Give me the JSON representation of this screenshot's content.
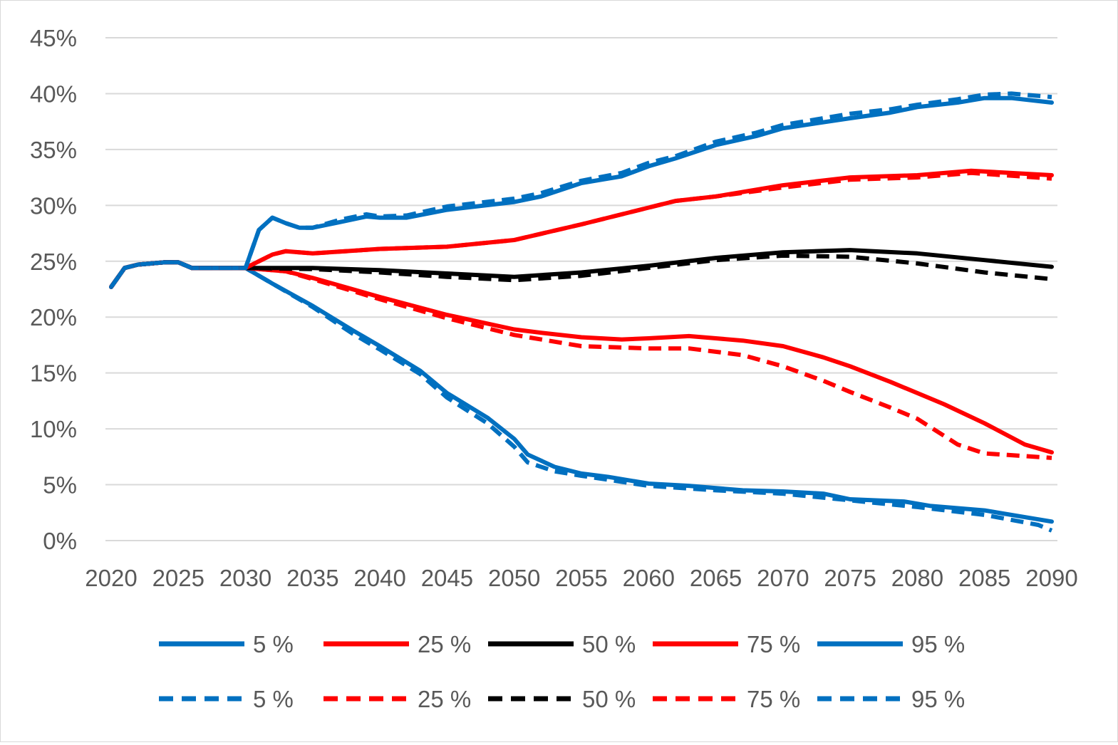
{
  "chart_data": {
    "type": "line",
    "title": "",
    "xlabel": "",
    "ylabel": "",
    "xlim": [
      2020,
      2090
    ],
    "ylim": [
      0,
      45
    ],
    "y_unit": "%",
    "grid": true,
    "legend_placement": "bottom",
    "x_ticks": [
      "2020",
      "2025",
      "2030",
      "2035",
      "2040",
      "2045",
      "2050",
      "2055",
      "2060",
      "2065",
      "2070",
      "2075",
      "2080",
      "2085",
      "2090"
    ],
    "y_ticks": [
      "0%",
      "5%",
      "10%",
      "15%",
      "20%",
      "25%",
      "30%",
      "35%",
      "40%",
      "45%"
    ],
    "common_start": {
      "x": [
        2020,
        2021,
        2022,
        2023,
        2024,
        2025,
        2026,
        2027,
        2028,
        2029,
        2030
      ],
      "y": [
        22.7,
        24.4,
        24.7,
        24.8,
        24.9,
        24.9,
        24.4,
        24.4,
        24.4,
        24.4,
        24.4
      ]
    },
    "series": [
      {
        "name": "5 %",
        "color": "#0070C0",
        "dash": false,
        "x": [
          2030,
          2032,
          2035,
          2038,
          2040,
          2043,
          2045,
          2048,
          2050,
          2051,
          2053,
          2055,
          2057,
          2060,
          2063,
          2065,
          2067,
          2070,
          2073,
          2075,
          2079,
          2081,
          2085,
          2088,
          2090
        ],
        "y": [
          24.4,
          23.0,
          21.0,
          18.8,
          17.4,
          15.2,
          13.2,
          11.0,
          9.1,
          7.7,
          6.6,
          6.0,
          5.7,
          5.1,
          4.9,
          4.7,
          4.5,
          4.4,
          4.2,
          3.7,
          3.5,
          3.1,
          2.7,
          2.1,
          1.7
        ]
      },
      {
        "name": "25 %",
        "color": "#FF0000",
        "dash": false,
        "x": [
          2030,
          2033,
          2035,
          2040,
          2045,
          2050,
          2052,
          2055,
          2058,
          2060,
          2063,
          2065,
          2067,
          2070,
          2073,
          2075,
          2078,
          2080,
          2082,
          2085,
          2088,
          2090
        ],
        "y": [
          24.4,
          24.1,
          23.5,
          21.8,
          20.2,
          18.9,
          18.6,
          18.2,
          18.0,
          18.1,
          18.3,
          18.1,
          17.9,
          17.4,
          16.4,
          15.6,
          14.2,
          13.2,
          12.2,
          10.5,
          8.6,
          7.9
        ]
      },
      {
        "name": "50 %",
        "color": "#000000",
        "dash": false,
        "x": [
          2030,
          2035,
          2040,
          2045,
          2050,
          2055,
          2060,
          2065,
          2070,
          2075,
          2080,
          2085,
          2090
        ],
        "y": [
          24.4,
          24.4,
          24.2,
          23.9,
          23.6,
          24.0,
          24.6,
          25.3,
          25.8,
          26.0,
          25.7,
          25.1,
          24.5
        ]
      },
      {
        "name": "75 %",
        "color": "#FF0000",
        "dash": false,
        "x": [
          2030,
          2031,
          2032,
          2033,
          2035,
          2040,
          2045,
          2050,
          2055,
          2060,
          2062,
          2065,
          2070,
          2075,
          2080,
          2084,
          2090
        ],
        "y": [
          24.4,
          25.0,
          25.6,
          25.9,
          25.7,
          26.1,
          26.3,
          26.9,
          28.3,
          29.8,
          30.4,
          30.8,
          31.8,
          32.5,
          32.7,
          33.1,
          32.7
        ]
      },
      {
        "name": "95 %",
        "color": "#0070C0",
        "dash": false,
        "x": [
          2030,
          2031,
          2032,
          2033,
          2034,
          2035,
          2037,
          2039,
          2040,
          2042,
          2045,
          2050,
          2052,
          2055,
          2058,
          2060,
          2062,
          2065,
          2068,
          2070,
          2075,
          2078,
          2080,
          2083,
          2085,
          2087,
          2090
        ],
        "y": [
          24.4,
          27.8,
          28.9,
          28.4,
          28.0,
          28.0,
          28.5,
          29.0,
          28.9,
          28.9,
          29.6,
          30.3,
          30.8,
          32.0,
          32.6,
          33.5,
          34.2,
          35.4,
          36.2,
          36.9,
          37.8,
          38.3,
          38.8,
          39.2,
          39.6,
          39.6,
          39.2
        ]
      },
      {
        "name": "5 %",
        "color": "#0070C0",
        "dash": true,
        "x": [
          2030,
          2032,
          2035,
          2038,
          2040,
          2043,
          2045,
          2048,
          2050,
          2051,
          2053,
          2055,
          2060,
          2065,
          2070,
          2075,
          2080,
          2085,
          2089,
          2090
        ],
        "y": [
          24.4,
          23.0,
          20.9,
          18.5,
          17.1,
          14.9,
          12.8,
          10.5,
          8.4,
          7.0,
          6.2,
          5.8,
          4.9,
          4.5,
          4.2,
          3.6,
          3.0,
          2.3,
          1.4,
          0.9
        ]
      },
      {
        "name": "25 %",
        "color": "#FF0000",
        "dash": true,
        "x": [
          2030,
          2033,
          2035,
          2040,
          2045,
          2050,
          2055,
          2060,
          2063,
          2065,
          2067,
          2070,
          2073,
          2075,
          2078,
          2080,
          2083,
          2085,
          2090
        ],
        "y": [
          24.4,
          24.1,
          23.4,
          21.6,
          19.9,
          18.4,
          17.4,
          17.2,
          17.2,
          16.9,
          16.6,
          15.6,
          14.3,
          13.3,
          11.9,
          10.9,
          8.6,
          7.8,
          7.4
        ]
      },
      {
        "name": "50 %",
        "color": "#000000",
        "dash": true,
        "x": [
          2030,
          2035,
          2040,
          2045,
          2050,
          2055,
          2060,
          2065,
          2070,
          2075,
          2080,
          2085,
          2090
        ],
        "y": [
          24.4,
          24.3,
          24.0,
          23.6,
          23.3,
          23.7,
          24.4,
          25.1,
          25.5,
          25.4,
          24.8,
          24.0,
          23.4
        ]
      },
      {
        "name": "75 %",
        "color": "#FF0000",
        "dash": true,
        "x": [
          2030,
          2031,
          2032,
          2033,
          2035,
          2040,
          2045,
          2050,
          2055,
          2060,
          2062,
          2065,
          2070,
          2075,
          2080,
          2084,
          2090
        ],
        "y": [
          24.4,
          25.0,
          25.6,
          25.9,
          25.7,
          26.1,
          26.3,
          26.9,
          28.3,
          29.8,
          30.4,
          30.8,
          31.6,
          32.3,
          32.5,
          32.9,
          32.4
        ]
      },
      {
        "name": "95 %",
        "color": "#0070C0",
        "dash": true,
        "x": [
          2030,
          2031,
          2032,
          2033,
          2034,
          2035,
          2037,
          2039,
          2040,
          2042,
          2045,
          2050,
          2052,
          2055,
          2058,
          2060,
          2062,
          2065,
          2068,
          2070,
          2075,
          2078,
          2080,
          2083,
          2085,
          2087,
          2090
        ],
        "y": [
          24.4,
          27.8,
          28.9,
          28.4,
          28.0,
          28.0,
          28.7,
          29.2,
          29.0,
          29.1,
          29.9,
          30.6,
          31.1,
          32.2,
          32.9,
          33.8,
          34.4,
          35.7,
          36.5,
          37.2,
          38.2,
          38.6,
          39.0,
          39.5,
          39.9,
          40.0,
          39.7
        ]
      }
    ]
  }
}
